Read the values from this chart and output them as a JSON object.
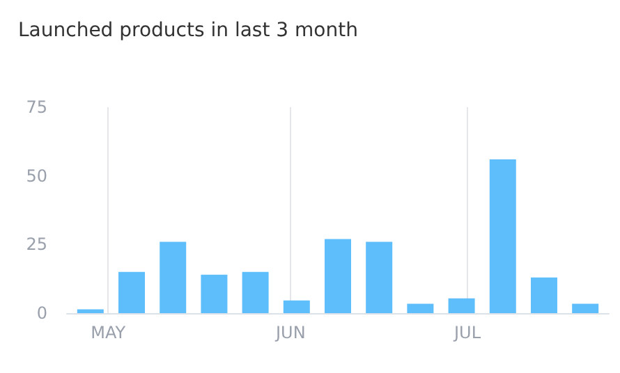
{
  "chart_data": {
    "type": "bar",
    "title": "Launched products in last 3 month",
    "x": [
      "--04-28",
      "--05-05",
      "--05-12",
      "--05-19",
      "--05-26",
      "--06-02",
      "--06-09",
      "--06-16",
      "--06-23",
      "--06-30",
      "--07-07",
      "--07-14",
      "--07-21"
    ],
    "values": [
      1.4,
      15,
      26,
      14,
      15,
      4.6,
      27,
      26,
      3.4,
      5.4,
      56,
      13,
      3.4
    ],
    "color": "#5ebefc",
    "xlim": [
      "--04-24",
      "--07-25"
    ],
    "xticks": [
      {
        "value": "--05-01",
        "label": "MAY"
      },
      {
        "value": "--06-01",
        "label": "JUN"
      },
      {
        "value": "--07-01",
        "label": "JUL"
      }
    ],
    "ylim": [
      0,
      75
    ],
    "yticks": [
      0,
      25,
      50,
      75
    ],
    "grid": "x"
  }
}
